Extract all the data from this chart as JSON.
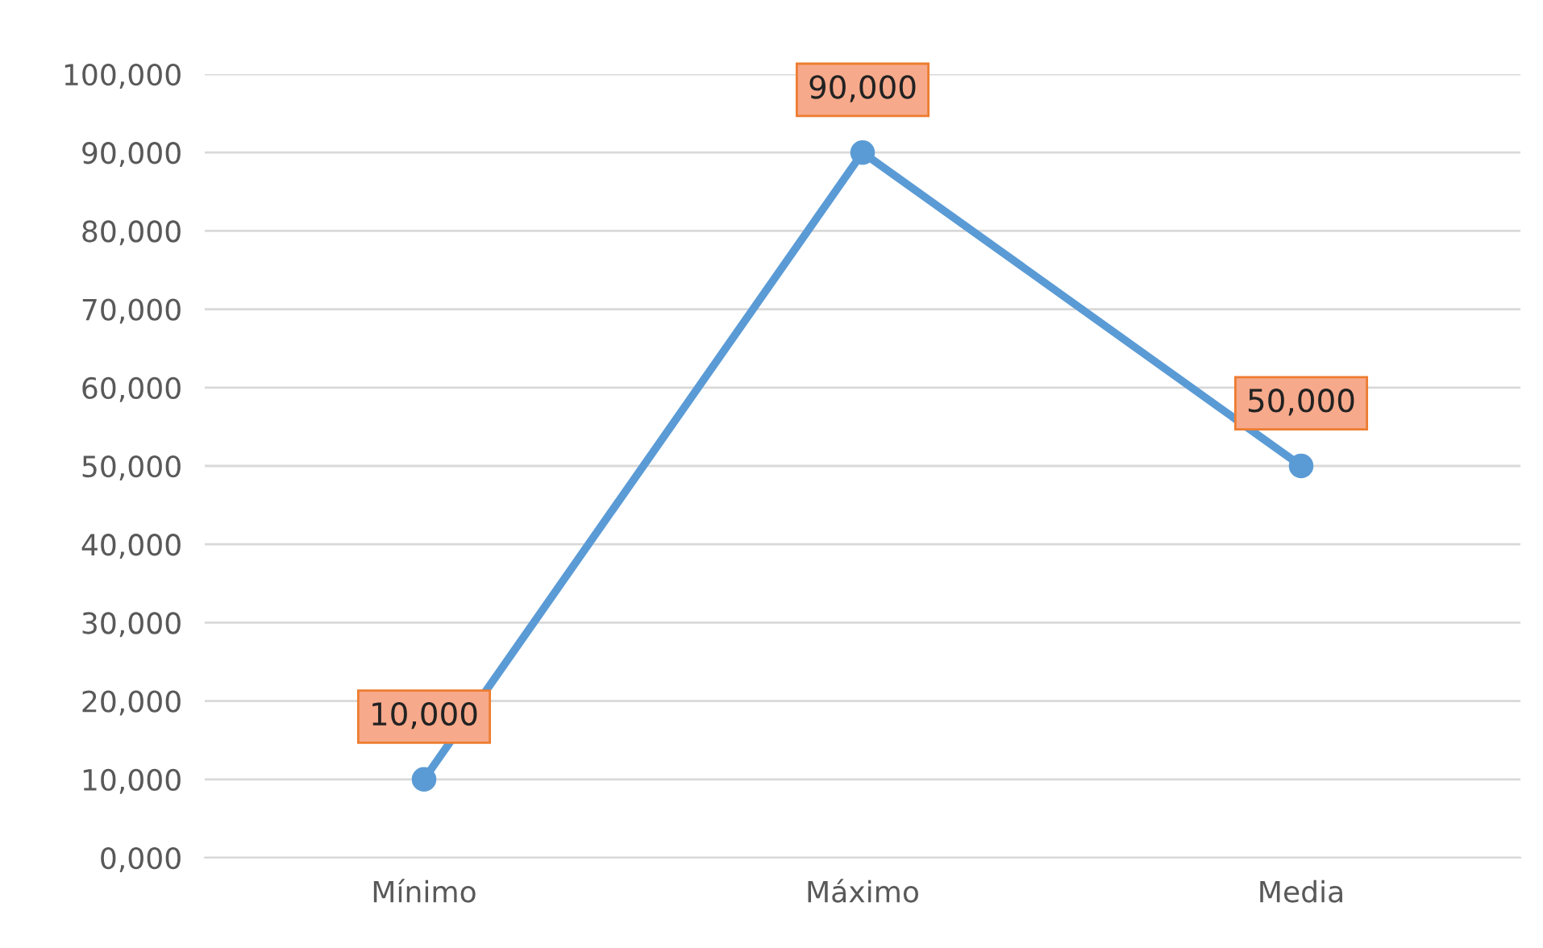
{
  "chart_data": {
    "type": "line",
    "categories": [
      "Mínimo",
      "Máximo",
      "Media"
    ],
    "series": [
      {
        "color": "#5b9bd5",
        "values": [
          10000,
          90000,
          50000
        ],
        "value_labels": [
          "10,000",
          "90,000",
          "50,000"
        ]
      }
    ],
    "ylim": [
      0,
      100000
    ],
    "yticks": [
      {
        "value": 0,
        "label": "0,000"
      },
      {
        "value": 10000,
        "label": "10,000"
      },
      {
        "value": 20000,
        "label": "20,000"
      },
      {
        "value": 30000,
        "label": "30,000"
      },
      {
        "value": 40000,
        "label": "40,000"
      },
      {
        "value": 50000,
        "label": "50,000"
      },
      {
        "value": 60000,
        "label": "60,000"
      },
      {
        "value": 70000,
        "label": "70,000"
      },
      {
        "value": 80000,
        "label": "80,000"
      },
      {
        "value": 90000,
        "label": "90,000"
      },
      {
        "value": 100000,
        "label": "100,000"
      }
    ],
    "grid": "y",
    "marker": "circle",
    "line_style": "solid",
    "legend": false
  }
}
